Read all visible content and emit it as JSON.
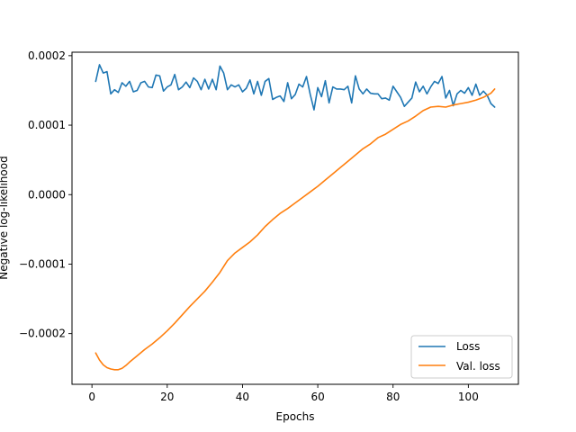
{
  "chart_data": {
    "type": "line",
    "xlabel": "Epochs",
    "ylabel": "Negative log-likelihood",
    "xlim": [
      -5.3,
      113.3
    ],
    "ylim": [
      -0.000273,
      0.000205
    ],
    "xticks": [
      0,
      20,
      40,
      60,
      80,
      100
    ],
    "xtick_labels": [
      "0",
      "20",
      "40",
      "60",
      "80",
      "100"
    ],
    "yticks": [
      -0.0002,
      -0.0001,
      0.0,
      0.0001,
      0.0002
    ],
    "ytick_labels": [
      "−0.0002",
      "−0.0001",
      "0.0000",
      "0.0001",
      "0.0002"
    ],
    "legend": {
      "position": "lower-right",
      "entries": [
        "Loss",
        "Val. loss"
      ]
    },
    "grid": false,
    "series": [
      {
        "name": "Loss",
        "color": "#1f77b4",
        "x": [
          1,
          2,
          3,
          4,
          5,
          6,
          7,
          8,
          9,
          10,
          11,
          12,
          13,
          14,
          15,
          16,
          17,
          18,
          19,
          20,
          21,
          22,
          23,
          24,
          25,
          26,
          27,
          28,
          29,
          30,
          31,
          32,
          33,
          34,
          35,
          36,
          37,
          38,
          39,
          40,
          41,
          42,
          43,
          44,
          45,
          46,
          47,
          48,
          49,
          50,
          51,
          52,
          53,
          54,
          55,
          56,
          57,
          58,
          59,
          60,
          61,
          62,
          63,
          64,
          65,
          66,
          67,
          68,
          69,
          70,
          71,
          72,
          73,
          74,
          75,
          76,
          77,
          78,
          79,
          80,
          81,
          82,
          83,
          84,
          85,
          86,
          87,
          88,
          89,
          90,
          91,
          92,
          93,
          94,
          95,
          96,
          97,
          98,
          99,
          100,
          101,
          102,
          103,
          104,
          105,
          106,
          107
        ],
        "values": [
          0.000163,
          0.000187,
          0.000175,
          0.000177,
          0.000145,
          0.000151,
          0.000147,
          0.000161,
          0.000156,
          0.000163,
          0.000148,
          0.00015,
          0.000161,
          0.000163,
          0.000155,
          0.000154,
          0.000172,
          0.000171,
          0.000149,
          0.000155,
          0.000158,
          0.000173,
          0.000151,
          0.000155,
          0.000162,
          0.000154,
          0.000168,
          0.000163,
          0.000151,
          0.000166,
          0.000152,
          0.000166,
          0.000151,
          0.000185,
          0.000175,
          0.000151,
          0.000158,
          0.000155,
          0.000158,
          0.000148,
          0.000153,
          0.000165,
          0.000145,
          0.000163,
          0.000143,
          0.000163,
          0.000167,
          0.000137,
          0.00014,
          0.000142,
          0.000134,
          0.000161,
          0.000138,
          0.000144,
          0.000159,
          0.000155,
          0.00017,
          0.000144,
          0.000122,
          0.000154,
          0.000141,
          0.000164,
          0.000132,
          0.000155,
          0.000152,
          0.000152,
          0.000151,
          0.000156,
          0.000132,
          0.000171,
          0.000152,
          0.000145,
          0.000152,
          0.000146,
          0.000145,
          0.000145,
          0.000138,
          0.000139,
          0.000136,
          0.000156,
          0.000148,
          0.00014,
          0.000127,
          0.000133,
          0.000139,
          0.000162,
          0.000148,
          0.000156,
          0.000145,
          0.000155,
          0.000163,
          0.00016,
          0.00017,
          0.000139,
          0.00015,
          0.000128,
          0.000145,
          0.00015,
          0.000146,
          0.000154,
          0.000143,
          0.000159,
          0.000143,
          0.000149,
          0.000143,
          0.000131,
          0.000126
        ]
      },
      {
        "name": "Val. loss",
        "color": "#ff7f0e",
        "x": [
          1,
          2,
          3,
          4,
          5,
          6,
          7,
          8,
          9,
          10,
          12,
          14,
          16,
          18,
          20,
          22,
          24,
          26,
          28,
          30,
          32,
          34,
          36,
          38,
          40,
          42,
          44,
          46,
          48,
          50,
          52,
          54,
          56,
          58,
          60,
          62,
          64,
          66,
          68,
          70,
          72,
          74,
          76,
          78,
          80,
          82,
          84,
          86,
          88,
          90,
          92,
          94,
          96,
          98,
          100,
          102,
          104,
          106,
          107
        ],
        "values": [
          -0.000228,
          -0.000238,
          -0.000245,
          -0.000249,
          -0.000251,
          -0.000252,
          -0.000252,
          -0.00025,
          -0.000246,
          -0.000241,
          -0.000232,
          -0.000223,
          -0.000215,
          -0.000206,
          -0.000196,
          -0.000185,
          -0.000173,
          -0.000161,
          -0.00015,
          -0.000139,
          -0.000126,
          -0.000112,
          -9.5e-05,
          -8.4e-05,
          -7.6e-05,
          -6.8e-05,
          -5.8e-05,
          -4.6e-05,
          -3.6e-05,
          -2.7e-05,
          -2e-05,
          -1.2e-05,
          -4e-06,
          4e-06,
          1.2e-05,
          2.1e-05,
          3e-05,
          3.9e-05,
          4.8e-05,
          5.7e-05,
          6.6e-05,
          7.3e-05,
          8.2e-05,
          8.7e-05,
          9.4e-05,
          0.000101,
          0.000106,
          0.000113,
          0.000121,
          0.000126,
          0.000127,
          0.000126,
          0.000129,
          0.000131,
          0.000133,
          0.000136,
          0.00014,
          0.000146,
          0.000152
        ]
      }
    ]
  }
}
